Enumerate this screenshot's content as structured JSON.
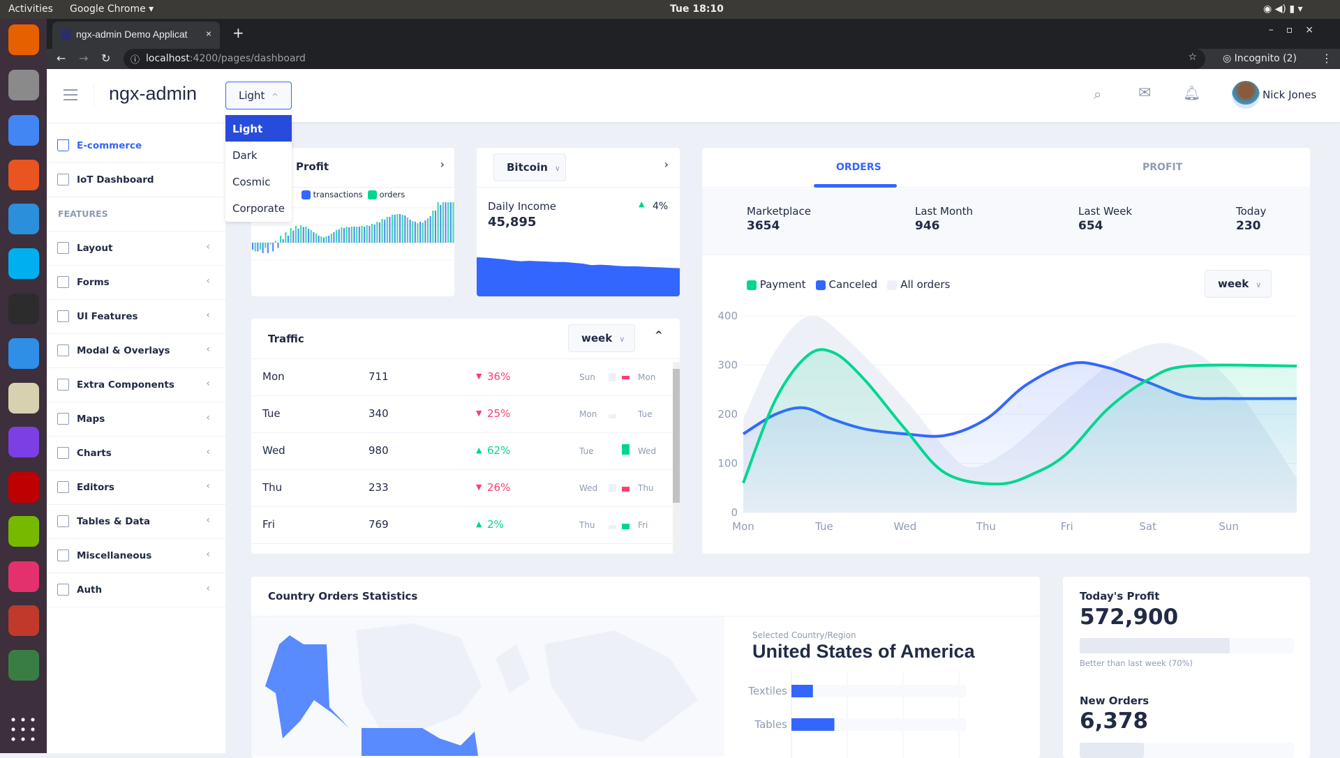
{
  "os": {
    "activities": "Activities",
    "app_menu": "Google Chrome ▾",
    "clock": "Tue 18:10",
    "dock": [
      {
        "icon": "firefox-icon",
        "color": "#e66000"
      },
      {
        "icon": "files-icon",
        "color": "#8a8a8a"
      },
      {
        "icon": "chrome-icon",
        "color": "#4285f4"
      },
      {
        "icon": "software-center-icon",
        "color": "#e95420"
      },
      {
        "icon": "vscode-icon",
        "color": "#2b8fdb"
      },
      {
        "icon": "skype-icon",
        "color": "#00aff0"
      },
      {
        "icon": "terminal-icon",
        "color": "#2c2c2c"
      },
      {
        "icon": "software-updater-icon",
        "color": "#2f8fe6"
      },
      {
        "icon": "text-editor-icon",
        "color": "#d8d1b0"
      },
      {
        "icon": "intellij-icon",
        "color": "#7b3fe4"
      },
      {
        "icon": "filezilla-icon",
        "color": "#bf0000"
      },
      {
        "icon": "nvidia-icon",
        "color": "#76b900"
      },
      {
        "icon": "intellij-ce-icon",
        "color": "#e4306c"
      },
      {
        "icon": "presentation-icon",
        "color": "#c0392b"
      },
      {
        "icon": "rocket-icon",
        "color": "#3a7d44"
      },
      {
        "icon": "app-grid-icon",
        "color": "#3d2f3b"
      }
    ]
  },
  "browser": {
    "tab_title": "ngx-admin Demo Applicat",
    "new_tab": "+",
    "url_host": "localhost",
    "url_path": ":4200/pages/dashboard",
    "incognito": "Incognito (2)"
  },
  "header": {
    "brand": "ngx-admin",
    "theme_selected": "Light",
    "theme_options": [
      "Light",
      "Dark",
      "Cosmic",
      "Corporate"
    ],
    "user_name": "Nick Jones"
  },
  "sidebar": {
    "items": [
      {
        "label": "E-commerce",
        "icon": "cart-icon",
        "active": true
      },
      {
        "label": "IoT Dashboard",
        "icon": "home-icon"
      }
    ],
    "section": "FEATURES",
    "features": [
      {
        "label": "Layout",
        "icon": "layout-icon"
      },
      {
        "label": "Forms",
        "icon": "edit-icon"
      },
      {
        "label": "UI Features",
        "icon": "grid-icon"
      },
      {
        "label": "Modal & Overlays",
        "icon": "browser-icon"
      },
      {
        "label": "Extra Components",
        "icon": "message-circle-icon"
      },
      {
        "label": "Maps",
        "icon": "map-icon"
      },
      {
        "label": "Charts",
        "icon": "pie-chart-icon"
      },
      {
        "label": "Editors",
        "icon": "text-icon"
      },
      {
        "label": "Tables & Data",
        "icon": "grid-outline-icon"
      },
      {
        "label": "Miscellaneous",
        "icon": "shuffle-icon"
      },
      {
        "label": "Auth",
        "icon": "lock-icon"
      }
    ]
  },
  "profit_card": {
    "title": "Profit",
    "legend": [
      "transactions",
      "orders"
    ],
    "colors": [
      "#3366ff",
      "#00d68f"
    ],
    "chart_data": {
      "type": "bar",
      "series": [
        {
          "name": "transactions",
          "values": [
            -20,
            -25,
            -30,
            -30,
            -25,
            -15,
            10,
            20,
            35,
            40,
            45,
            40,
            30,
            20,
            15,
            20,
            30,
            38,
            42,
            44,
            46,
            46,
            46,
            48,
            52,
            58,
            66,
            74,
            80,
            82,
            78,
            66,
            60,
            60,
            64,
            76,
            92,
            108,
            120,
            120
          ]
        },
        {
          "name": "orders",
          "values": [
            -25,
            -20,
            -15,
            -5,
            5,
            20,
            30,
            42,
            48,
            50,
            46,
            36,
            26,
            18,
            18,
            26,
            36,
            44,
            46,
            46,
            46,
            48,
            50,
            54,
            60,
            68,
            74,
            80,
            82,
            80,
            72,
            62,
            56,
            58,
            70,
            92,
            118,
            134,
            134,
            130
          ]
        }
      ]
    }
  },
  "bitcoin_card": {
    "select": "Bitcoin",
    "label": "Daily Income",
    "value": "45,895",
    "delta": "4%",
    "delta_dir": "up",
    "chart_data": {
      "type": "area",
      "values": [
        100,
        99,
        97,
        95,
        92,
        90,
        91,
        90,
        89,
        88,
        88,
        86,
        84,
        80,
        81,
        80,
        78,
        77,
        77,
        76,
        75,
        74,
        73,
        72
      ],
      "color": "#3366ff"
    }
  },
  "traffic": {
    "title": "Traffic",
    "period": "week",
    "rows": [
      {
        "day": "Mon",
        "value": "711",
        "delta": "36%",
        "dir": "down",
        "prev": "Sun",
        "cur": "Mon"
      },
      {
        "day": "Tue",
        "value": "340",
        "delta": "25%",
        "dir": "down",
        "prev": "Mon",
        "cur": "Tue"
      },
      {
        "day": "Wed",
        "value": "980",
        "delta": "62%",
        "dir": "up",
        "prev": "Tue",
        "cur": "Wed"
      },
      {
        "day": "Thu",
        "value": "233",
        "delta": "26%",
        "dir": "down",
        "prev": "Wed",
        "cur": "Thu"
      },
      {
        "day": "Fri",
        "value": "769",
        "delta": "2%",
        "dir": "up",
        "prev": "Thu",
        "cur": "Fri"
      }
    ]
  },
  "orders": {
    "tabs": [
      "ORDERS",
      "PROFIT"
    ],
    "active_tab": "ORDERS",
    "stats": [
      {
        "label": "Marketplace",
        "value": "3654"
      },
      {
        "label": "Last Month",
        "value": "946"
      },
      {
        "label": "Last Week",
        "value": "654"
      },
      {
        "label": "Today",
        "value": "230"
      }
    ],
    "period": "week",
    "chart_data": {
      "type": "area",
      "categories": [
        "Mon",
        "Tue",
        "Wed",
        "Thu",
        "Fri",
        "Sat",
        "Sun"
      ],
      "ylim": [
        0,
        400
      ],
      "yticks": [
        "0",
        "100",
        "200",
        "300",
        "400"
      ],
      "grid": true,
      "legend": "top-left",
      "series": [
        {
          "name": "All orders",
          "color": "#edf1f7",
          "points": [
            [
              0,
              190
            ],
            [
              0.4,
              330
            ],
            [
              0.83,
              400
            ],
            [
              1.3,
              350
            ],
            [
              2,
              230
            ],
            [
              2.5,
              130
            ],
            [
              2.82,
              92
            ],
            [
              3.3,
              130
            ],
            [
              4,
              230
            ],
            [
              4.7,
              320
            ],
            [
              5.33,
              342
            ],
            [
              6,
              270
            ],
            [
              6.84,
              70
            ]
          ]
        },
        {
          "name": "Canceled",
          "color": "#3366ff",
          "points": [
            [
              0,
              160
            ],
            [
              0.4,
              200
            ],
            [
              0.75,
              213
            ],
            [
              1.1,
              190
            ],
            [
              1.5,
              170
            ],
            [
              2,
              160
            ],
            [
              2.5,
              157
            ],
            [
              3,
              190
            ],
            [
              3.5,
              260
            ],
            [
              4.05,
              303
            ],
            [
              4.5,
              295
            ],
            [
              5,
              265
            ],
            [
              5.5,
              235
            ],
            [
              6,
              232
            ],
            [
              6.84,
              232
            ]
          ]
        },
        {
          "name": "Payment",
          "color": "#00d68f",
          "points": [
            [
              0,
              60
            ],
            [
              0.4,
              230
            ],
            [
              0.8,
              320
            ],
            [
              1.12,
              325
            ],
            [
              1.5,
              270
            ],
            [
              2,
              170
            ],
            [
              2.5,
              80
            ],
            [
              3.15,
              58
            ],
            [
              3.6,
              80
            ],
            [
              4,
              120
            ],
            [
              4.5,
              210
            ],
            [
              5,
              270
            ],
            [
              5.5,
              298
            ],
            [
              6.84,
              298
            ]
          ]
        }
      ]
    }
  },
  "country": {
    "title": "Country Orders Statistics",
    "selected_label": "Selected Country/Region",
    "selected": "United States of America",
    "chart_data": {
      "type": "bar",
      "categories": [
        "Textiles",
        "Tables"
      ],
      "values": [
        10,
        20
      ],
      "xlim": [
        0,
        100
      ]
    }
  },
  "today": {
    "profit_title": "Today's Profit",
    "profit_value": "572,900",
    "profit_progress": 70,
    "profit_caption": "Better than last week (70%)",
    "orders_title": "New Orders",
    "orders_value": "6,378",
    "orders_progress": 30
  }
}
